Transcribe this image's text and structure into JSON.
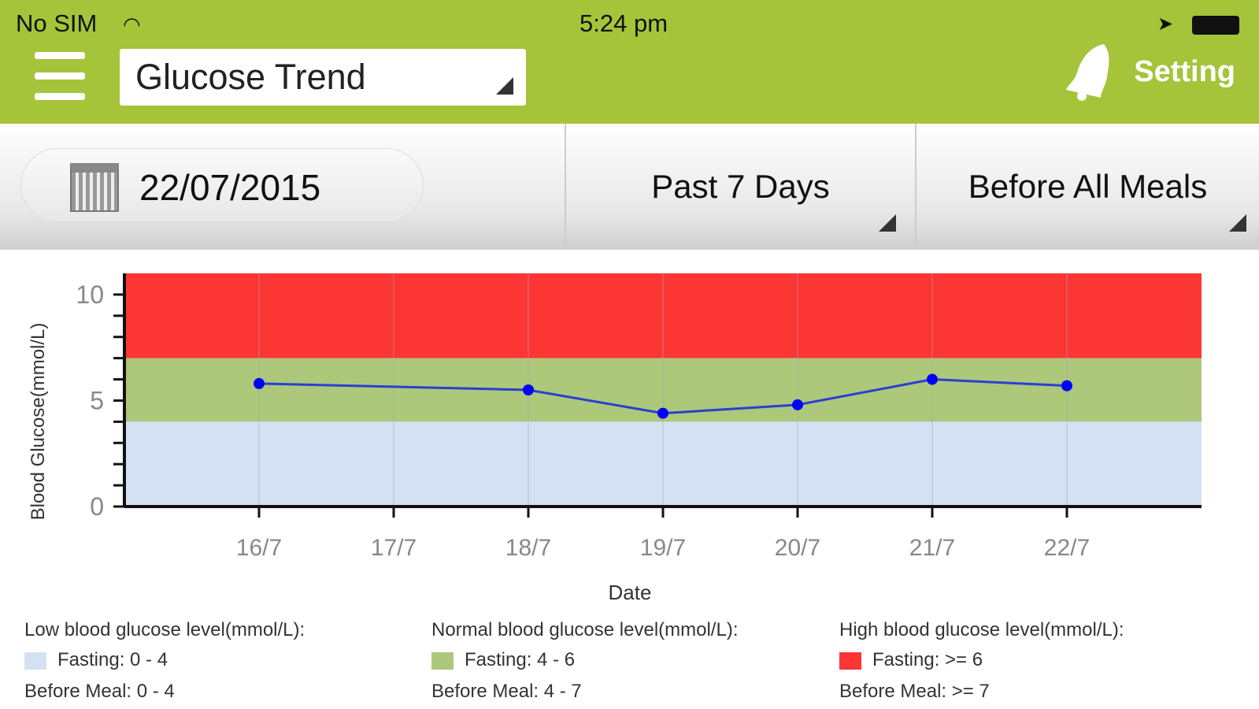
{
  "status": {
    "carrier": "No SIM",
    "time": "5:24 pm"
  },
  "header": {
    "view_selector": "Glucose Trend",
    "setting_label": "Setting"
  },
  "filters": {
    "date": "22/07/2015",
    "period": "Past 7 Days",
    "meal": "Before All Meals"
  },
  "colors": {
    "brand": "#a5c43a",
    "low": "#d3e1f3",
    "normal": "#adc77b",
    "high": "#fc3535",
    "line": "#2a3fd0",
    "point": "#0000ff"
  },
  "chart_data": {
    "type": "line",
    "xlabel": "Date",
    "ylabel": "Blood Glucose(mmol/L)",
    "categories": [
      "16/7",
      "17/7",
      "18/7",
      "19/7",
      "20/7",
      "21/7",
      "22/7"
    ],
    "series": [
      {
        "name": "Blood glucose",
        "points": [
          {
            "x": "16/7",
            "y": 5.8
          },
          {
            "x": "18/7",
            "y": 5.5
          },
          {
            "x": "19/7",
            "y": 4.4
          },
          {
            "x": "20/7",
            "y": 4.8
          },
          {
            "x": "21/7",
            "y": 6.0
          },
          {
            "x": "22/7",
            "y": 5.7
          }
        ]
      }
    ],
    "ylim": [
      0,
      11
    ],
    "yticks": [
      0,
      5,
      10
    ],
    "bands": [
      {
        "name": "low",
        "from": 0,
        "to": 4
      },
      {
        "name": "normal",
        "from": 4,
        "to": 7
      },
      {
        "name": "high",
        "from": 7,
        "to": 11
      }
    ]
  },
  "legend": [
    {
      "title": "Low blood glucose level(mmol/L):",
      "fasting": "Fasting: 0 - 4",
      "before_meal": "Before Meal: 0 - 4",
      "color": "#d3e1f3"
    },
    {
      "title": "Normal blood glucose level(mmol/L):",
      "fasting": "Fasting: 4 - 6",
      "before_meal": "Before Meal: 4 - 7",
      "color": "#adc77b"
    },
    {
      "title": "High blood glucose level(mmol/L):",
      "fasting": "Fasting: >= 6",
      "before_meal": "Before Meal: >= 7",
      "color": "#fc3535"
    }
  ]
}
